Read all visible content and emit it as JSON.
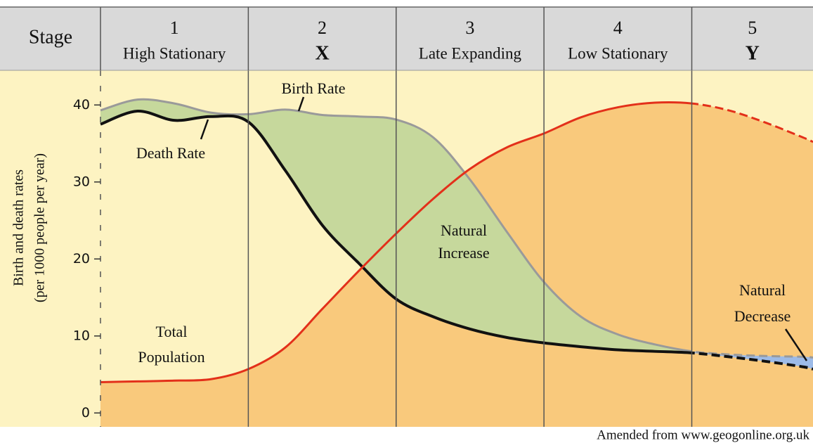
{
  "chart_data": {
    "type": "line",
    "header_label": "Stage",
    "stages": [
      {
        "number": "1",
        "name": "High Stationary"
      },
      {
        "number": "2",
        "name": "X"
      },
      {
        "number": "3",
        "name": "Late Expanding"
      },
      {
        "number": "4",
        "name": "Low Stationary"
      },
      {
        "number": "5",
        "name": "Y"
      }
    ],
    "ylabel": [
      "Birth and death rates",
      "(per 1000 people per year)"
    ],
    "x": [
      0,
      0.25,
      0.5,
      0.75,
      1,
      1.25,
      1.5,
      1.75,
      2,
      2.25,
      2.5,
      2.75,
      3,
      3.25,
      3.5,
      3.75,
      4,
      4.25,
      4.5,
      4.75,
      4.82
    ],
    "xlim": [
      0,
      4.82
    ],
    "ylim": [
      -1.8,
      44.5
    ],
    "yticks": [
      0,
      10,
      20,
      30,
      40
    ],
    "series": [
      {
        "name": "Birth Rate",
        "color": "#9a9a9a",
        "dashed_after": 4,
        "values": [
          39.3,
          40.7,
          40.2,
          39,
          38.8,
          39.4,
          38.7,
          38.5,
          38.1,
          35.8,
          30.3,
          23.5,
          17,
          12.5,
          10.2,
          8.9,
          8,
          7.6,
          7.4,
          7.3,
          7.2
        ]
      },
      {
        "name": "Death Rate",
        "color": "#111111",
        "dashed_after": 4,
        "values": [
          37.5,
          39.2,
          38,
          38.5,
          37.8,
          31.5,
          24.4,
          19.4,
          14.8,
          12.5,
          10.9,
          9.8,
          9.1,
          8.6,
          8.2,
          8,
          7.8,
          7.3,
          6.7,
          6,
          5.7
        ]
      },
      {
        "name": "Total Population",
        "color": "#e3301a",
        "dashed_after": 4,
        "values": [
          4,
          4.1,
          4.2,
          4.4,
          5.7,
          8.5,
          13.5,
          18.5,
          23.3,
          27.8,
          31.7,
          34.5,
          36.3,
          38.4,
          39.7,
          40.3,
          40.2,
          39.3,
          37.7,
          35.8,
          35.2
        ]
      }
    ],
    "annotations": {
      "natural_increase": [
        "Natural",
        "Increase"
      ],
      "natural_decrease": [
        "Natural",
        "Decrease"
      ],
      "total_population": [
        "Total",
        "Population"
      ]
    },
    "source": "Amended from www.geogonline.org.uk"
  }
}
